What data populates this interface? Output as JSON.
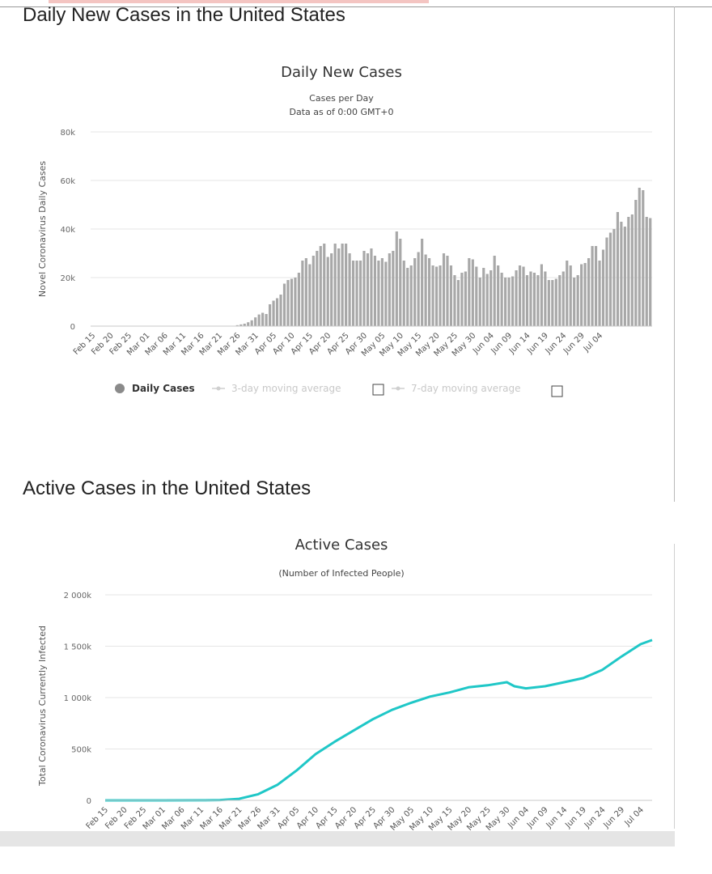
{
  "sections": {
    "daily_title": "Daily New Cases in the United States",
    "active_title": "Active Cases in the United States"
  },
  "colors": {
    "daily_bars": "#a8a8a8",
    "active_line": "#1fc7c7",
    "grid": "#e6e6e6"
  },
  "chart_data": [
    {
      "type": "bar",
      "title": "Daily New Cases",
      "subtitle": [
        "Cases per Day",
        "Data as of 0:00 GMT+0"
      ],
      "xlabel": "",
      "ylabel": "Novel Coronavirus Daily Cases",
      "ylim": [
        0,
        80000
      ],
      "yticks": [
        0,
        20000,
        40000,
        60000,
        80000
      ],
      "ytick_labels": [
        "0",
        "20k",
        "40k",
        "60k",
        "80k"
      ],
      "x_tick_labels": [
        "Feb 15",
        "Feb 20",
        "Feb 25",
        "Mar 01",
        "Mar 06",
        "Mar 11",
        "Mar 16",
        "Mar 21",
        "Mar 26",
        "Mar 31",
        "Apr 05",
        "Apr 10",
        "Apr 15",
        "Apr 20",
        "Apr 25",
        "Apr 30",
        "May 05",
        "May 10",
        "May 15",
        "May 20",
        "May 25",
        "May 30",
        "Jun 04",
        "Jun 09",
        "Jun 14",
        "Jun 19",
        "Jun 24",
        "Jun 29",
        "Jul 04"
      ],
      "grid": true,
      "legend": [
        {
          "label": "Daily Cases",
          "active": true
        },
        {
          "label": "3-day moving average",
          "active": false
        },
        {
          "label": "7-day moving average",
          "active": false
        }
      ],
      "legend_position": "bottom",
      "series": [
        {
          "name": "Daily Cases",
          "values": [
            0,
            0,
            0,
            0,
            0,
            0,
            0,
            0,
            0,
            0,
            0,
            0,
            0,
            0,
            0,
            0,
            0,
            0,
            0,
            0,
            0,
            0,
            0,
            0,
            0,
            0,
            0,
            0,
            0,
            0,
            0,
            0,
            0,
            0,
            0,
            0,
            0,
            0,
            0,
            0,
            400,
            700,
            1000,
            1600,
            2400,
            3600,
            4800,
            5500,
            5000,
            9000,
            10500,
            11500,
            13000,
            17500,
            19000,
            19500,
            20000,
            22000,
            27000,
            28000,
            25500,
            29000,
            31000,
            33000,
            34000,
            28500,
            30000,
            34000,
            32000,
            34000,
            34000,
            30000,
            27000,
            27000,
            27000,
            31000,
            30000,
            32000,
            29000,
            27000,
            28000,
            26500,
            30000,
            31000,
            39000,
            36000,
            27000,
            24000,
            25000,
            28000,
            30500,
            36000,
            29500,
            28000,
            25000,
            24500,
            25000,
            30000,
            29000,
            25000,
            21000,
            19000,
            22000,
            22500,
            28000,
            27500,
            24500,
            20000,
            24000,
            21500,
            23000,
            29000,
            25000,
            22000,
            20000,
            20000,
            20500,
            23000,
            25000,
            24500,
            21000,
            22500,
            22000,
            21000,
            25500,
            22500,
            19000,
            19000,
            19500,
            21000,
            22500,
            27000,
            25000,
            20000,
            21000,
            25500,
            26000,
            28000,
            33000,
            33000,
            27000,
            31500,
            36500,
            38500,
            40000,
            47000,
            43000,
            41000,
            45000,
            46000,
            52000,
            57000,
            56000,
            45000,
            44500
          ]
        }
      ]
    },
    {
      "type": "line",
      "title": "Active Cases",
      "subtitle": [
        "(Number of Infected People)"
      ],
      "xlabel": "",
      "ylabel": "Total Coronavirus Currently Infected",
      "ylim": [
        0,
        2000000
      ],
      "yticks": [
        0,
        500000,
        1000000,
        1500000,
        2000000
      ],
      "ytick_labels": [
        "0",
        "500k",
        "1 000k",
        "1 500k",
        "2 000k"
      ],
      "x_tick_labels": [
        "Feb 15",
        "Feb 20",
        "Feb 25",
        "Mar 01",
        "Mar 06",
        "Mar 11",
        "Mar 16",
        "Mar 21",
        "Mar 26",
        "Mar 31",
        "Apr 05",
        "Apr 10",
        "Apr 15",
        "Apr 20",
        "Apr 25",
        "Apr 30",
        "May 05",
        "May 10",
        "May 15",
        "May 20",
        "May 25",
        "May 30",
        "Jun 04",
        "Jun 09",
        "Jun 14",
        "Jun 19",
        "Jun 24",
        "Jun 29",
        "Jul 04"
      ],
      "grid": true,
      "series": [
        {
          "points": [
            [
              "Feb 15",
              0
            ],
            [
              "Mar 01",
              100
            ],
            [
              "Mar 11",
              1000
            ],
            [
              "Mar 16",
              3000
            ],
            [
              "Mar 21",
              15000
            ],
            [
              "Mar 26",
              60000
            ],
            [
              "Mar 31",
              150000
            ],
            [
              "Apr 05",
              290000
            ],
            [
              "Apr 10",
              450000
            ],
            [
              "Apr 15",
              570000
            ],
            [
              "Apr 20",
              680000
            ],
            [
              "Apr 25",
              790000
            ],
            [
              "Apr 30",
              880000
            ],
            [
              "May 05",
              950000
            ],
            [
              "May 10",
              1010000
            ],
            [
              "May 15",
              1050000
            ],
            [
              "May 20",
              1100000
            ],
            [
              "May 25",
              1120000
            ],
            [
              "May 30",
              1150000
            ],
            [
              "Jun 01",
              1110000
            ],
            [
              "Jun 04",
              1090000
            ],
            [
              "Jun 09",
              1110000
            ],
            [
              "Jun 14",
              1150000
            ],
            [
              "Jun 19",
              1190000
            ],
            [
              "Jun 24",
              1270000
            ],
            [
              "Jun 29",
              1400000
            ],
            [
              "Jul 04",
              1520000
            ],
            [
              "Jul 07",
              1560000
            ]
          ]
        }
      ]
    }
  ]
}
